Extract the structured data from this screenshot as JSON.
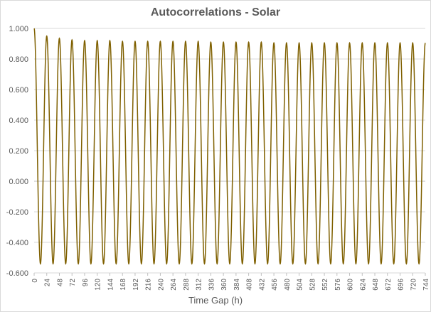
{
  "chart_data": {
    "type": "line",
    "title": "Autocorrelations - Solar",
    "xlabel": "Time Gap (h)",
    "ylabel": "",
    "xlim": [
      0,
      744
    ],
    "ylim": [
      -0.6,
      1.0
    ],
    "y_ticks": [
      "1.000",
      "0.800",
      "0.600",
      "0.400",
      "0.200",
      "0.000",
      "-0.200",
      "-0.400",
      "-0.600"
    ],
    "x_ticks": [
      0,
      24,
      48,
      72,
      96,
      120,
      144,
      168,
      192,
      216,
      240,
      264,
      288,
      312,
      336,
      360,
      384,
      408,
      432,
      456,
      480,
      504,
      528,
      552,
      576,
      600,
      624,
      648,
      672,
      696,
      720,
      744
    ],
    "grid": true,
    "legend": "none",
    "series": [
      {
        "color": "#7f6000",
        "period": 24,
        "x": [
          0,
          6,
          12,
          18,
          24,
          48,
          72,
          96,
          120,
          144,
          168,
          192,
          216,
          240,
          264,
          288,
          312,
          336,
          360,
          384,
          408,
          432,
          456,
          480,
          504,
          528,
          552,
          576,
          600,
          624,
          648,
          672,
          696,
          720,
          744
        ],
        "y": [
          1.0,
          0.2,
          -0.54,
          0.2,
          0.95,
          0.935,
          0.925,
          0.92,
          0.92,
          0.92,
          0.915,
          0.915,
          0.915,
          0.915,
          0.915,
          0.915,
          0.915,
          0.91,
          0.91,
          0.91,
          0.91,
          0.91,
          0.905,
          0.905,
          0.905,
          0.905,
          0.905,
          0.905,
          0.905,
          0.905,
          0.905,
          0.905,
          0.905,
          0.905,
          0.905
        ],
        "trough_value": -0.54
      }
    ]
  }
}
